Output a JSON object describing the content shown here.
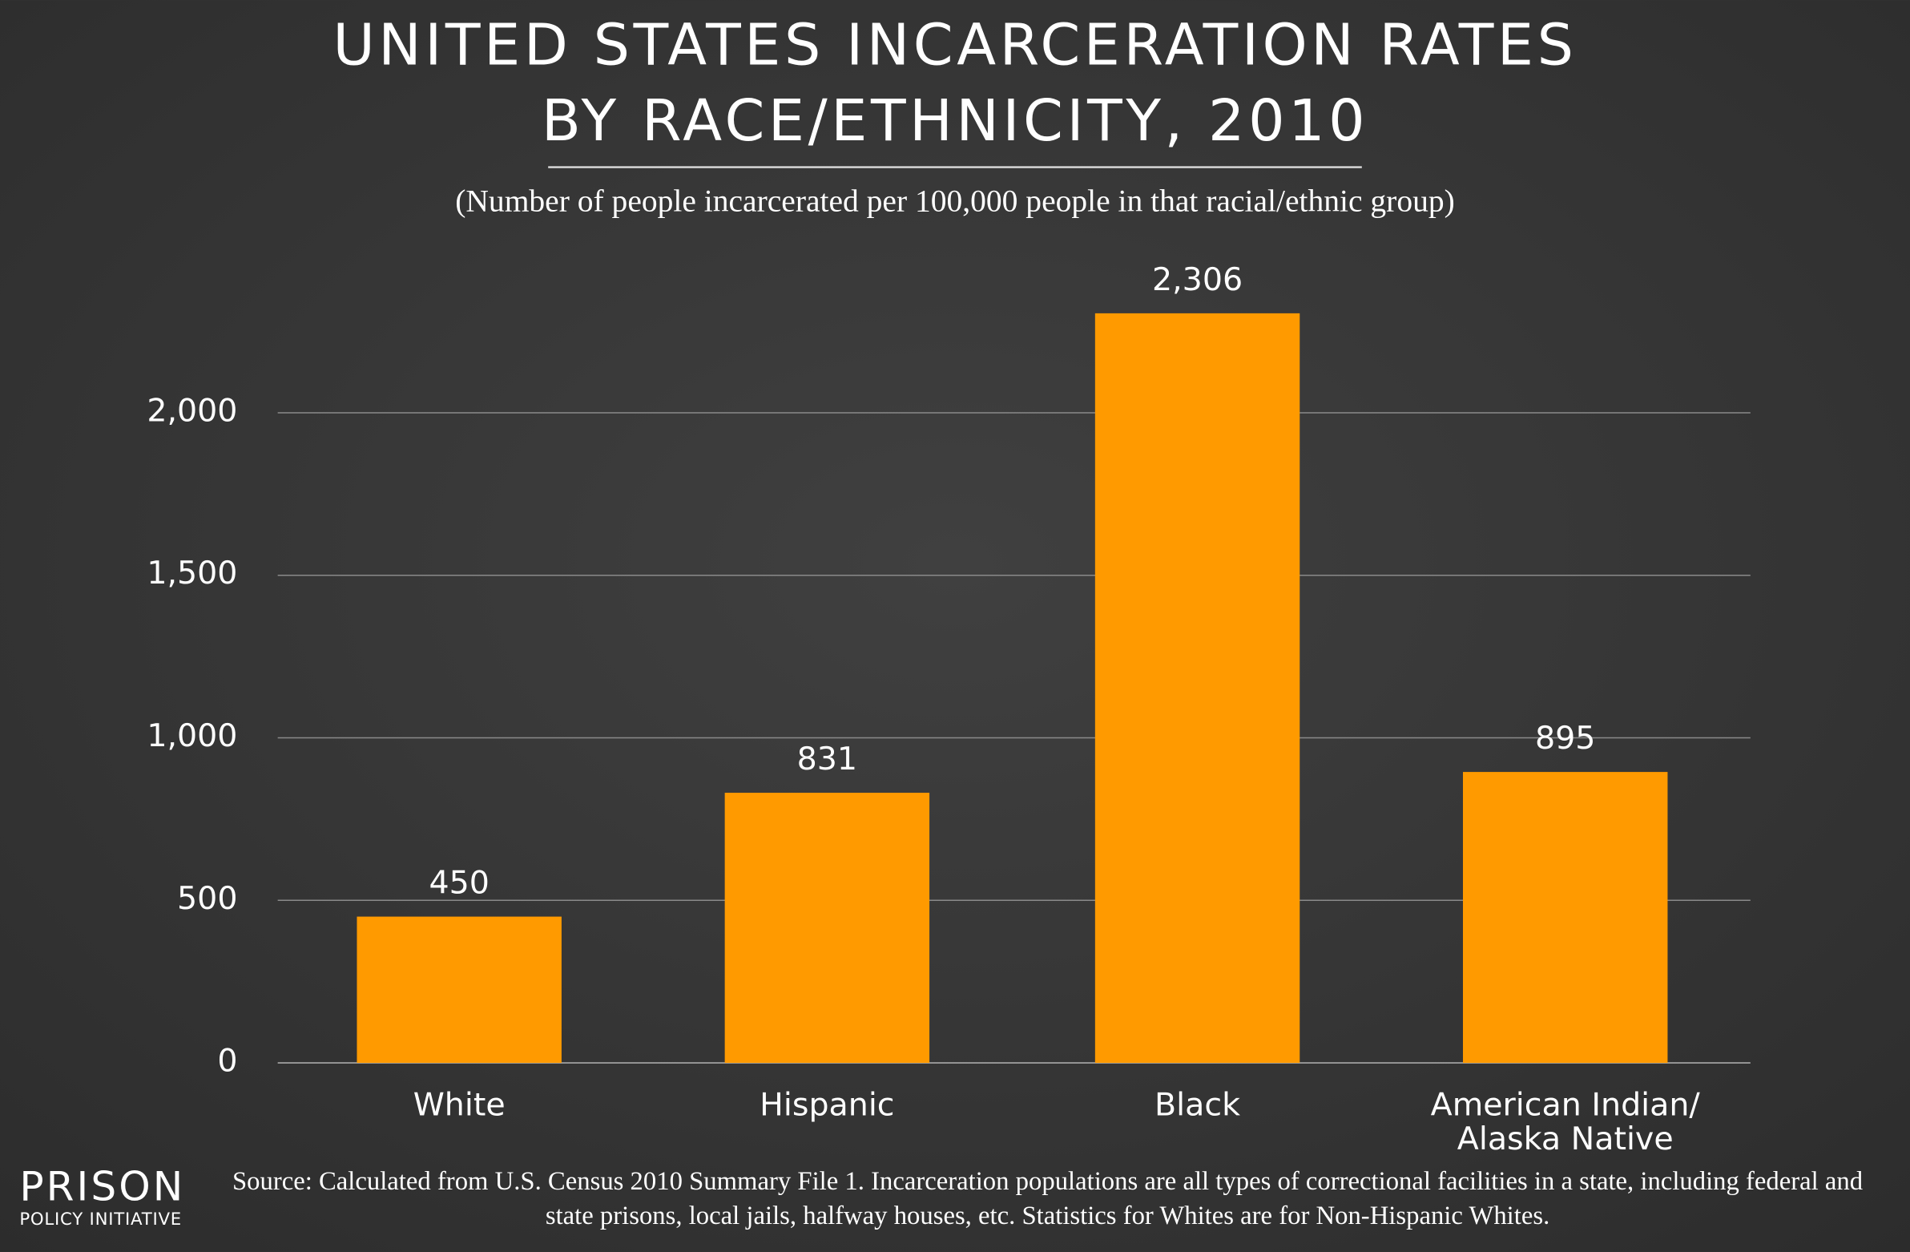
{
  "chart_data": {
    "type": "bar",
    "title": [
      "UNITED STATES INCARCERATION RATES",
      "BY RACE/ETHNICITY, 2010"
    ],
    "subtitle": "(Number of people incarcerated per 100,000 people in that racial/ethnic group)",
    "categories": [
      "White",
      "Hispanic",
      "Black",
      "American Indian/ Alaska Native"
    ],
    "values": [
      450,
      831,
      2306,
      895
    ],
    "value_labels": [
      "450",
      "831",
      "2,306",
      "895"
    ],
    "color": "#ff9a00",
    "ylim": [
      0,
      2450
    ],
    "yticks": [
      0,
      500,
      {
        "value": 1000,
        "label": "1,000"
      },
      {
        "value": 1500,
        "label": "1,500"
      },
      {
        "value": 2000,
        "label": "2,000"
      }
    ],
    "grid": true,
    "source": "Source: Calculated from U.S. Census 2010 Summary File 1. Incarceration populations are all types of correctional facilities in a state, including federal and state prisons, local jails, halfway houses, etc. Statistics for Whites are for Non-Hispanic Whites.",
    "logo": [
      "PRISON",
      "POLICY INITIATIVE"
    ]
  }
}
